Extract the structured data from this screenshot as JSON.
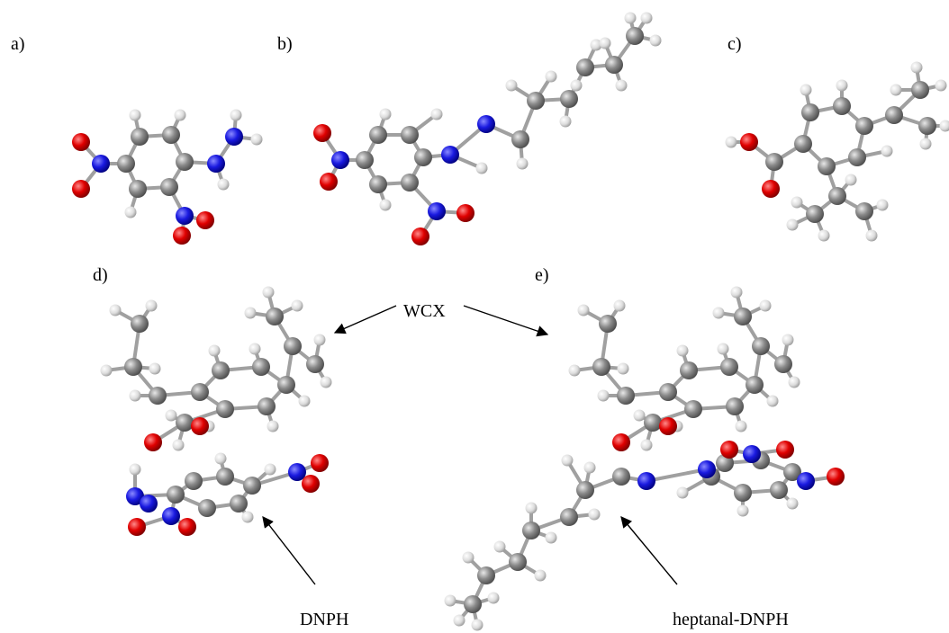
{
  "panel_labels": [
    "a)",
    "b)",
    "c)",
    "d)",
    "e)"
  ],
  "annotations": {
    "wcx": "WCX",
    "dnph": "DNPH",
    "heptanal_dnph": "heptanal-DNPH"
  }
}
